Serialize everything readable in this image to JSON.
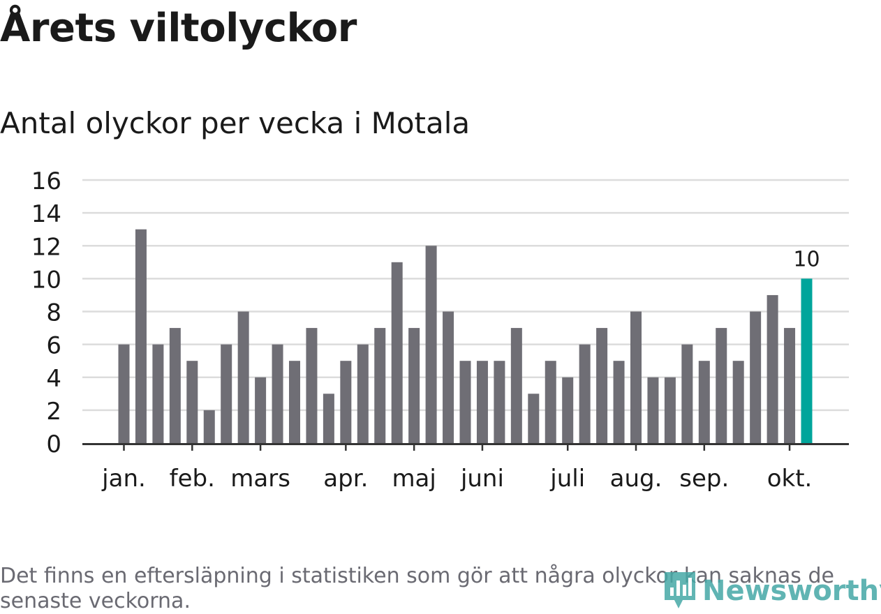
{
  "title": "Årets viltolyckor",
  "subtitle": "Antal olyckor per vecka i Motala",
  "footnote": "Det finns en eftersläpning i statistiken som gör att några olyckor kan saknas de senaste veckorna.",
  "brand": {
    "name": "Newsworthy",
    "color": "#45a8a6"
  },
  "colors": {
    "bar": "#6f6e75",
    "highlight": "#00a59b",
    "grid": "#dcdcdc",
    "axis": "#333333",
    "text": "#1a1a1a"
  },
  "chart_data": {
    "type": "bar",
    "title": "Antal olyckor per vecka i Motala",
    "xlabel": "",
    "ylabel": "",
    "ylim": [
      0,
      16
    ],
    "yticks": [
      "0",
      "2",
      "4",
      "6",
      "8",
      "10",
      "12",
      "14",
      "16"
    ],
    "values": [
      6,
      13,
      6,
      7,
      5,
      2,
      6,
      8,
      4,
      6,
      5,
      7,
      3,
      5,
      6,
      7,
      11,
      7,
      12,
      8,
      5,
      5,
      5,
      7,
      3,
      5,
      4,
      6,
      7,
      5,
      8,
      4,
      4,
      6,
      5,
      7,
      5,
      8,
      9,
      7,
      10
    ],
    "highlight_index": 40,
    "highlight_label": "10",
    "month_labels": [
      {
        "label": "jan.",
        "bar_index": 0
      },
      {
        "label": "feb.",
        "bar_index": 4
      },
      {
        "label": "mars",
        "bar_index": 8
      },
      {
        "label": "apr.",
        "bar_index": 13
      },
      {
        "label": "maj",
        "bar_index": 17
      },
      {
        "label": "juni",
        "bar_index": 21
      },
      {
        "label": "juli",
        "bar_index": 26
      },
      {
        "label": "aug.",
        "bar_index": 30
      },
      {
        "label": "sep.",
        "bar_index": 34
      },
      {
        "label": "okt.",
        "bar_index": 39
      }
    ],
    "grid": true,
    "legend": "none"
  }
}
